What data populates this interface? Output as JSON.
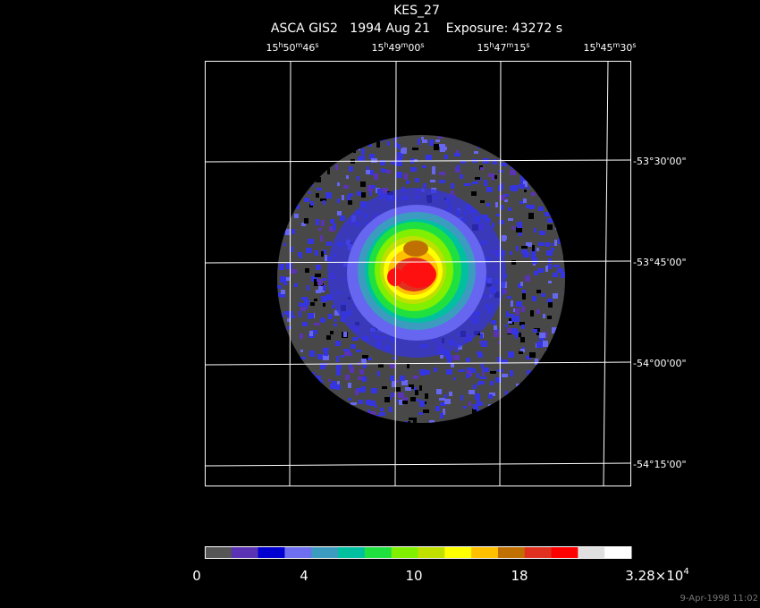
{
  "header": {
    "title": "KES_27",
    "subtitle": "ASCA GIS2   1994 Aug 21    Exposure: 43272 s"
  },
  "ra_labels": [
    [
      "15",
      "h",
      "50",
      "m",
      "46",
      "s"
    ],
    [
      "15",
      "h",
      "49",
      "m",
      "00",
      "s"
    ],
    [
      "15",
      "h",
      "47",
      "m",
      "15",
      "s"
    ],
    [
      "15",
      "h",
      "45",
      "m",
      "30",
      "s"
    ]
  ],
  "dec_labels": [
    "-53°30'00\"",
    "-53°45'00\"",
    "-54°00'00\"",
    "-54°15'00\""
  ],
  "colorbar": {
    "labels": [
      [
        "0"
      ],
      [
        "4"
      ],
      [
        "10"
      ],
      [
        "18"
      ],
      [
        "3.28×10",
        "4"
      ]
    ]
  },
  "footer": {
    "timestamp": "9-Apr-1998 11:02"
  }
}
